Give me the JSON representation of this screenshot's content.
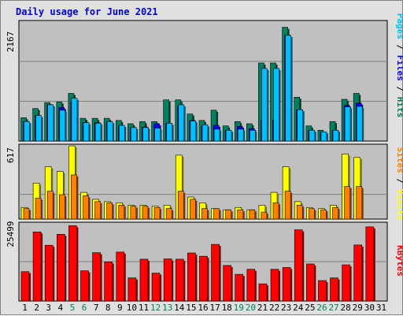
{
  "title": "Daily usage for June 2021",
  "chart_data": [
    {
      "type": "bar",
      "panel": "top",
      "categories": [
        "1",
        "2",
        "3",
        "4",
        "5",
        "6",
        "7",
        "8",
        "9",
        "10",
        "11",
        "12",
        "13",
        "14",
        "15",
        "16",
        "17",
        "18",
        "19",
        "20",
        "21",
        "22",
        "23",
        "24",
        "25",
        "26",
        "27",
        "28",
        "29",
        "30",
        "31"
      ],
      "scale_label": "2167",
      "ylim": [
        0,
        2167
      ],
      "label_parts": [
        {
          "text": "Pages",
          "color": "#00bfff"
        },
        {
          "text": " / ",
          "color": "#000000"
        },
        {
          "text": "Files",
          "color": "#0000ff"
        },
        {
          "text": " / ",
          "color": "#000000"
        },
        {
          "text": "Hits",
          "color": "#008060"
        }
      ],
      "series": [
        {
          "name": "Hits",
          "color": "#008060",
          "values": [
            430,
            600,
            710,
            720,
            880,
            420,
            420,
            420,
            380,
            320,
            360,
            360,
            760,
            760,
            500,
            380,
            570,
            280,
            360,
            320,
            1440,
            1440,
            2100,
            810,
            280,
            200,
            360,
            770,
            880,
            0,
            0
          ]
        },
        {
          "name": "Files",
          "color": "#0000ff",
          "values": [
            360,
            470,
            670,
            620,
            720,
            340,
            340,
            360,
            280,
            250,
            260,
            320,
            330,
            640,
            380,
            280,
            290,
            200,
            270,
            230,
            390,
            390,
            1950,
            580,
            200,
            170,
            200,
            660,
            700,
            0,
            0
          ]
        },
        {
          "name": "Pages",
          "color": "#00bfff",
          "values": [
            360,
            470,
            670,
            570,
            790,
            340,
            330,
            360,
            290,
            250,
            250,
            240,
            330,
            670,
            370,
            300,
            220,
            200,
            220,
            200,
            1340,
            1340,
            1950,
            580,
            200,
            170,
            200,
            630,
            640,
            0,
            0
          ]
        }
      ]
    },
    {
      "type": "bar",
      "panel": "middle",
      "categories": [
        "1",
        "2",
        "3",
        "4",
        "5",
        "6",
        "7",
        "8",
        "9",
        "10",
        "11",
        "12",
        "13",
        "14",
        "15",
        "16",
        "17",
        "18",
        "19",
        "20",
        "21",
        "22",
        "23",
        "24",
        "25",
        "26",
        "27",
        "28",
        "29",
        "30",
        "31"
      ],
      "scale_label": "617",
      "ylim": [
        0,
        617
      ],
      "label_parts": [
        {
          "text": "Sites",
          "color": "#ff8000"
        },
        {
          "text": " / ",
          "color": "#000000"
        },
        {
          "text": "Visits",
          "color": "#ffff00"
        }
      ],
      "series": [
        {
          "name": "Visits",
          "color": "#ffff00",
          "values": [
            100,
            310,
            450,
            410,
            630,
            230,
            170,
            150,
            140,
            120,
            120,
            110,
            120,
            550,
            190,
            140,
            90,
            80,
            100,
            80,
            120,
            230,
            450,
            150,
            100,
            90,
            120,
            560,
            530,
            0,
            0
          ]
        },
        {
          "name": "Sites",
          "color": "#ff8000",
          "values": [
            90,
            180,
            240,
            210,
            380,
            200,
            150,
            140,
            120,
            110,
            110,
            100,
            90,
            240,
            170,
            90,
            90,
            80,
            80,
            80,
            60,
            140,
            240,
            120,
            90,
            80,
            100,
            280,
            280,
            0,
            0
          ]
        }
      ]
    },
    {
      "type": "bar",
      "panel": "bottom",
      "categories": [
        "1",
        "2",
        "3",
        "4",
        "5",
        "6",
        "7",
        "8",
        "9",
        "10",
        "11",
        "12",
        "13",
        "14",
        "15",
        "16",
        "17",
        "18",
        "19",
        "20",
        "21",
        "22",
        "23",
        "24",
        "25",
        "26",
        "27",
        "28",
        "29",
        "30",
        "31"
      ],
      "scale_label": "25499",
      "ylim": [
        0,
        25499
      ],
      "label_parts": [
        {
          "text": "KBytes",
          "color": "#ff0000"
        }
      ],
      "series": [
        {
          "name": "KBytes",
          "color": "#ff0000",
          "values": [
            9900,
            23300,
            18800,
            22500,
            25400,
            10200,
            16300,
            13200,
            16500,
            7800,
            14100,
            9400,
            14200,
            14100,
            16200,
            15100,
            19100,
            12000,
            9000,
            10700,
            5800,
            10700,
            11300,
            24000,
            12500,
            6900,
            7800,
            12200,
            18900,
            25000,
            0
          ]
        }
      ]
    }
  ],
  "x_labels": [
    {
      "text": "1",
      "color": "#000000"
    },
    {
      "text": "2",
      "color": "#000000"
    },
    {
      "text": "3",
      "color": "#000000"
    },
    {
      "text": "4",
      "color": "#000000"
    },
    {
      "text": "5",
      "color": "#008060"
    },
    {
      "text": "6",
      "color": "#008060"
    },
    {
      "text": "7",
      "color": "#000000"
    },
    {
      "text": "8",
      "color": "#000000"
    },
    {
      "text": "9",
      "color": "#000000"
    },
    {
      "text": "10",
      "color": "#000000"
    },
    {
      "text": "11",
      "color": "#000000"
    },
    {
      "text": "12",
      "color": "#008060"
    },
    {
      "text": "13",
      "color": "#008060"
    },
    {
      "text": "14",
      "color": "#000000"
    },
    {
      "text": "15",
      "color": "#000000"
    },
    {
      "text": "16",
      "color": "#000000"
    },
    {
      "text": "17",
      "color": "#000000"
    },
    {
      "text": "18",
      "color": "#000000"
    },
    {
      "text": "19",
      "color": "#008060"
    },
    {
      "text": "20",
      "color": "#008060"
    },
    {
      "text": "21",
      "color": "#000000"
    },
    {
      "text": "22",
      "color": "#000000"
    },
    {
      "text": "23",
      "color": "#000000"
    },
    {
      "text": "24",
      "color": "#000000"
    },
    {
      "text": "25",
      "color": "#000000"
    },
    {
      "text": "26",
      "color": "#008060"
    },
    {
      "text": "27",
      "color": "#008060"
    },
    {
      "text": "28",
      "color": "#000000"
    },
    {
      "text": "29",
      "color": "#000000"
    },
    {
      "text": "30",
      "color": "#000000"
    },
    {
      "text": "31",
      "color": "#000000"
    }
  ]
}
